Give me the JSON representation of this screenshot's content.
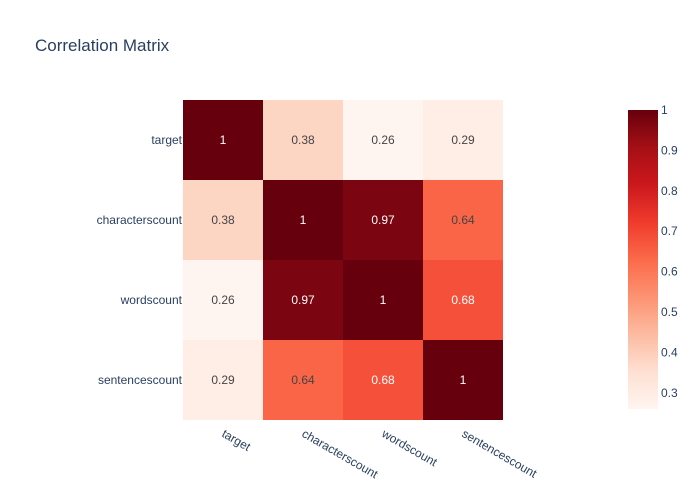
{
  "chart_data": {
    "type": "heatmap",
    "title": "Correlation Matrix",
    "x_categories": [
      "target",
      "characterscount",
      "wordscount",
      "sentencescount"
    ],
    "y_categories": [
      "target",
      "characterscount",
      "wordscount",
      "sentencescount"
    ],
    "values": [
      [
        1,
        0.38,
        0.26,
        0.29
      ],
      [
        0.38,
        1,
        0.97,
        0.64
      ],
      [
        0.26,
        0.97,
        1,
        0.68
      ],
      [
        0.29,
        0.64,
        0.68,
        1
      ]
    ],
    "cell_text": [
      [
        "1",
        "0.38",
        "0.26",
        "0.29"
      ],
      [
        "0.38",
        "1",
        "0.97",
        "0.64"
      ],
      [
        "0.26",
        "0.97",
        "1",
        "0.68"
      ],
      [
        "0.29",
        "0.64",
        "0.68",
        "1"
      ]
    ],
    "colorscale": "Reds",
    "zmin": 0.26,
    "zmax": 1,
    "colorbar_ticks": [
      "1",
      "0.9",
      "0.8",
      "0.7",
      "0.6",
      "0.5",
      "0.4",
      "0.3"
    ],
    "colorbar_tick_values": [
      1,
      0.9,
      0.8,
      0.7,
      0.6,
      0.5,
      0.4,
      0.3
    ]
  }
}
